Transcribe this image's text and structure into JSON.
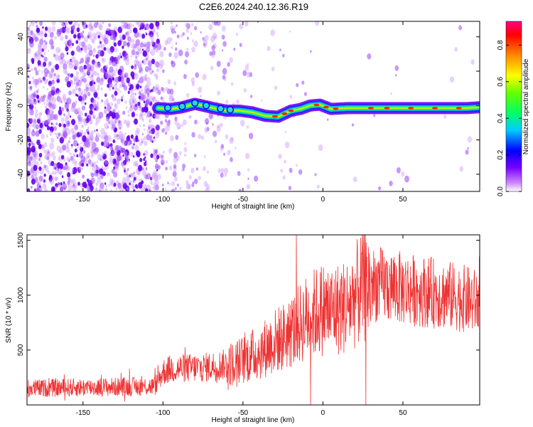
{
  "title": "C2E6.2024.240.12.36.R19",
  "chart_data": [
    {
      "type": "heatmap",
      "xlabel": "Height of straight line (km)",
      "ylabel": "Frequency (Hz)",
      "xlim": [
        -185,
        98
      ],
      "ylim": [
        -50,
        49
      ],
      "xticks": [
        -150,
        -100,
        -50,
        0,
        50
      ],
      "yticks": [
        -40,
        -20,
        0,
        20,
        40
      ],
      "colorbar": {
        "label": "Normalized spectral amplitude",
        "range": [
          0,
          0.93
        ],
        "ticks": [
          "0.0",
          "0.2",
          "0.4",
          "0.6",
          "0.8"
        ],
        "tick_values": [
          0,
          0.2,
          0.4,
          0.6,
          0.8
        ]
      },
      "ridge": {
        "x": [
          -103,
          -95,
          -88,
          -80,
          -73,
          -66,
          -60,
          -52,
          -44,
          -36,
          -28,
          -20,
          -14,
          -8,
          -2,
          5,
          15,
          30,
          50,
          70,
          90,
          98
        ],
        "y": [
          -1.5,
          -2,
          -1,
          1,
          -0.5,
          -2,
          -3,
          -3,
          -4,
          -6,
          -6.5,
          -3,
          -2,
          0,
          0.5,
          -2,
          -1.5,
          -1.5,
          -1.5,
          -1.5,
          -1.5,
          -1
        ]
      }
    },
    {
      "type": "line",
      "xlabel": "Height of straight line (km)",
      "ylabel": "SNR (10 * v/v)",
      "xlim": [
        -185,
        98
      ],
      "ylim": [
        0,
        1550
      ],
      "xticks": [
        -150,
        -100,
        -50,
        0,
        50
      ],
      "yticks": [
        500,
        1000,
        1500
      ],
      "color": "#ee3333",
      "envelope": {
        "x": [
          -185,
          -150,
          -105,
          -100,
          -95,
          -75,
          -55,
          -40,
          -30,
          -20,
          -10,
          0,
          5,
          15,
          20,
          25,
          35,
          50,
          70,
          85,
          98
        ],
        "y": [
          150,
          160,
          170,
          300,
          330,
          340,
          380,
          480,
          580,
          660,
          800,
          880,
          860,
          900,
          990,
          1080,
          1100,
          1060,
          1020,
          980,
          930
        ]
      }
    }
  ]
}
